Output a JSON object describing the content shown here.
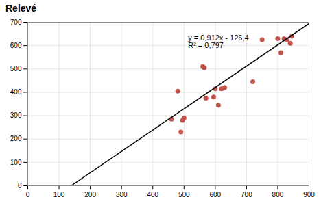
{
  "chart_data": {
    "type": "scatter",
    "title": "Relevé",
    "series": [
      {
        "type": "scatter",
        "color": "#c0524a",
        "x": [
          460,
          480,
          490,
          495,
          500,
          560,
          565,
          570,
          595,
          600,
          610,
          620,
          630,
          720,
          750,
          800,
          810,
          820,
          830,
          840,
          845
        ],
        "values": [
          285,
          405,
          230,
          280,
          290,
          510,
          505,
          375,
          380,
          415,
          345,
          415,
          420,
          445,
          625,
          630,
          570,
          630,
          625,
          610,
          640
        ]
      },
      {
        "type": "line",
        "color": "black",
        "x": [
          138.5964912280702,
          900
        ],
        "values": [
          0,
          694.4
        ]
      }
    ],
    "annotation": "y = 0,912x - 126,4\nR² = 0,797",
    "xlim": [
      0,
      900
    ],
    "ylim": [
      0,
      700
    ],
    "xticks": [
      0,
      100,
      200,
      300,
      400,
      500,
      600,
      700,
      800,
      900
    ],
    "yticks": [
      0,
      100,
      200,
      300,
      400,
      500,
      600,
      700
    ],
    "grid": true
  }
}
